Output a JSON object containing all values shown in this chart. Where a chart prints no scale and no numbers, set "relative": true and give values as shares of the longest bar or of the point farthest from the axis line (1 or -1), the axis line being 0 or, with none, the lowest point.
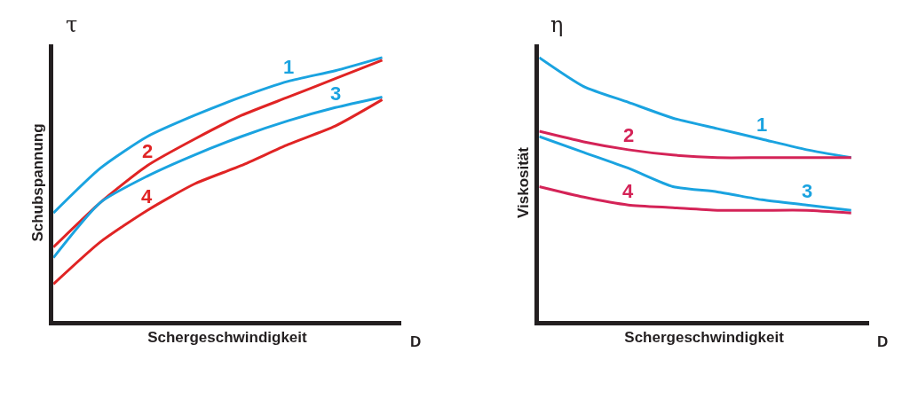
{
  "chart_data": [
    {
      "type": "line",
      "relative": true,
      "xlabel": "Schergeschwindigkeit",
      "ylabel": "Schubspannung",
      "annotations": [
        "τ",
        "D"
      ],
      "categories": [
        null,
        null,
        null,
        null,
        null,
        null,
        null,
        null
      ],
      "series": [
        {
          "name": "1",
          "color": "#1aa3e0",
          "values": [
            0.41,
            0.58,
            0.7,
            0.78,
            0.85,
            0.91,
            0.95,
            1.0
          ]
        },
        {
          "name": "2",
          "color": "#e02424",
          "values": [
            0.28,
            0.45,
            0.59,
            0.69,
            0.78,
            0.85,
            0.92,
            0.99
          ]
        },
        {
          "name": "3",
          "color": "#1aa3e0",
          "values": [
            0.24,
            0.45,
            0.55,
            0.63,
            0.7,
            0.76,
            0.81,
            0.85
          ]
        },
        {
          "name": "4",
          "color": "#e02424",
          "values": [
            0.14,
            0.3,
            0.42,
            0.52,
            0.59,
            0.67,
            0.74,
            0.84
          ]
        }
      ]
    },
    {
      "type": "line",
      "relative": true,
      "xlabel": "Schergeschwindigkeit",
      "ylabel": "Viskosität",
      "annotations": [
        "η",
        "D"
      ],
      "categories": [
        null,
        null,
        null,
        null,
        null,
        null,
        null,
        null
      ],
      "series": [
        {
          "name": "1",
          "color": "#1aa3e0",
          "values": [
            1.0,
            0.89,
            0.83,
            0.77,
            0.73,
            0.69,
            0.65,
            0.62
          ]
        },
        {
          "name": "2",
          "color": "#d42357",
          "values": [
            0.72,
            0.68,
            0.65,
            0.63,
            0.62,
            0.62,
            0.62,
            0.62
          ]
        },
        {
          "name": "3",
          "color": "#1aa3e0",
          "values": [
            0.7,
            0.64,
            0.58,
            0.51,
            0.49,
            0.46,
            0.44,
            0.42
          ]
        },
        {
          "name": "4",
          "color": "#d42357",
          "values": [
            0.51,
            0.47,
            0.44,
            0.43,
            0.42,
            0.42,
            0.42,
            0.41
          ]
        }
      ]
    }
  ]
}
